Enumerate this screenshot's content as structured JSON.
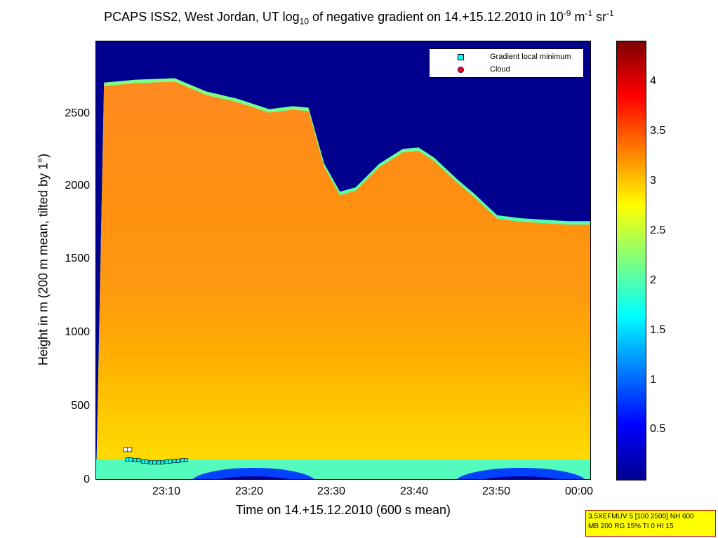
{
  "title": {
    "main": "PCAPS ISS2, West Jordan, UT log",
    "sub": "10",
    "mid": " of negative gradient on 14.+15.12.2010 in 10",
    "exp1": "-9",
    "unit1": " m",
    "exp2": "-1",
    "unit2": " sr",
    "exp3": "-1"
  },
  "chart_data": {
    "type": "heatmap",
    "xlabel": "Time on 14.+15.12.2010 (600 s mean)",
    "ylabel": "Height in m (200 m mean, tilted by 1°)",
    "x_ticks": [
      "23:10",
      "23:20",
      "23:30",
      "23:40",
      "23:50",
      "00:00"
    ],
    "y_ticks": [
      "0",
      "500",
      "1000",
      "1500",
      "2000",
      "2500"
    ],
    "ylim": [
      0,
      2980
    ],
    "colorbar_ticks": [
      "0.5",
      "1",
      "1.5",
      "2",
      "2.5",
      "3",
      "3.5",
      "4"
    ],
    "colorbar_range": [
      0,
      4.4
    ],
    "legend": {
      "position": "top-right",
      "entries": [
        {
          "label": "Gradient local minimum",
          "color": "#00ffff",
          "marker": "square"
        },
        {
          "label": "Cloud",
          "color": "#ff0000",
          "marker": "circle"
        }
      ]
    },
    "boundary_layer_top": {
      "x": [
        "23:01",
        "23:05",
        "23:10",
        "23:14",
        "23:18",
        "23:22",
        "23:25",
        "23:27",
        "23:29",
        "23:31",
        "23:33",
        "23:36",
        "23:39",
        "23:41",
        "23:43",
        "23:46",
        "23:48",
        "23:51",
        "23:54",
        "23:57",
        "00:00",
        "00:02"
      ],
      "height_m": [
        2700,
        2720,
        2730,
        2640,
        2590,
        2520,
        2540,
        2530,
        2150,
        1960,
        1990,
        2150,
        2250,
        2260,
        2190,
        2040,
        1950,
        1800,
        1780,
        1770,
        1760,
        1760
      ]
    },
    "gradient_local_minimum": {
      "x": [
        "23:04",
        "23:05",
        "23:06",
        "23:07",
        "23:08",
        "23:09",
        "23:10",
        "23:11"
      ],
      "height_m": [
        140,
        135,
        125,
        120,
        120,
        125,
        130,
        135
      ]
    },
    "upper_gradient_points": {
      "x": [
        "23:04"
      ],
      "height_m": [
        210
      ]
    }
  },
  "info_box": {
    "line1": "3.5XEFMUV 5 [100 2500] NH 600",
    "line2": "MB 200 RG 15% TI 0 HI 15"
  }
}
